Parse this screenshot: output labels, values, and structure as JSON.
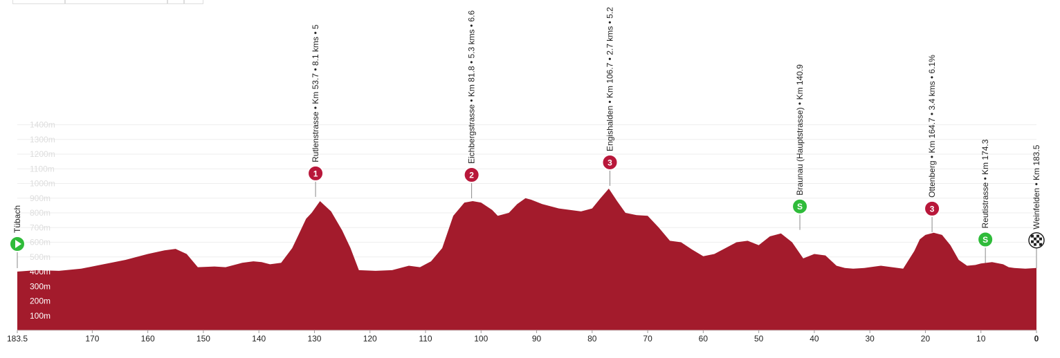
{
  "chart_data": {
    "type": "area",
    "title": "",
    "xlabel": "",
    "ylabel": "",
    "x_reversed": true,
    "xlim": [
      183.5,
      0
    ],
    "ylim": [
      0,
      1500
    ],
    "x_ticks": [
      "183.5",
      "170",
      "160",
      "150",
      "140",
      "130",
      "120",
      "110",
      "100",
      "90",
      "80",
      "70",
      "60",
      "50",
      "40",
      "30",
      "20",
      "10",
      "0"
    ],
    "y_ticks": [
      "100m",
      "200m",
      "300m",
      "400m",
      "500m",
      "600m",
      "700m",
      "800m",
      "900m",
      "1000m",
      "1100m",
      "1200m",
      "1300m",
      "1400m"
    ],
    "fill_color": "#a31b2c",
    "grid": true,
    "profile": {
      "km_remaining": [
        183.5,
        180,
        176,
        172,
        168,
        164,
        160,
        157,
        155,
        153,
        151,
        148,
        146,
        143,
        141,
        139.5,
        138,
        136,
        134,
        133,
        131.5,
        130.5,
        129,
        127,
        125,
        123.5,
        122,
        119,
        116,
        113,
        111,
        109,
        107,
        105,
        103,
        101.5,
        100,
        98,
        97,
        95,
        93.5,
        92,
        91,
        89,
        86,
        84,
        82,
        80,
        78.5,
        77,
        75.5,
        74,
        72,
        70,
        68,
        66,
        64,
        62,
        60,
        58,
        56,
        54,
        52,
        50,
        48,
        46,
        44,
        42,
        40,
        38,
        36,
        34.5,
        33,
        31,
        30,
        28,
        26,
        24,
        22,
        21,
        20,
        18.5,
        17,
        15.5,
        14,
        12.5,
        11,
        10,
        8,
        6,
        5,
        4,
        2,
        0
      ],
      "elevation_m": [
        400,
        410,
        405,
        420,
        450,
        480,
        520,
        545,
        555,
        520,
        430,
        435,
        430,
        460,
        470,
        465,
        450,
        460,
        560,
        640,
        760,
        800,
        880,
        810,
        680,
        560,
        410,
        405,
        410,
        440,
        430,
        470,
        560,
        780,
        870,
        880,
        870,
        820,
        780,
        800,
        860,
        900,
        890,
        860,
        830,
        820,
        810,
        830,
        900,
        965,
        880,
        800,
        785,
        780,
        700,
        610,
        600,
        550,
        505,
        520,
        560,
        600,
        610,
        580,
        640,
        660,
        600,
        490,
        520,
        510,
        440,
        425,
        420,
        425,
        430,
        440,
        430,
        420,
        540,
        620,
        650,
        665,
        650,
        580,
        480,
        440,
        445,
        455,
        465,
        450,
        430,
        425,
        420,
        425
      ]
    },
    "markers": [
      {
        "label": "Tübach",
        "km": 183.5,
        "elev": 400,
        "type": "start",
        "badge": ""
      },
      {
        "label": "Rutlenstrasse • Km 53.7 • 8.1 kms • 5",
        "km": 129.8,
        "elev": 890,
        "type": "climb",
        "badge": "1"
      },
      {
        "label": "Eichbergstrasse • Km 81.8 • 5.3 kms • 6.6",
        "km": 101.7,
        "elev": 880,
        "type": "climb",
        "badge": "2"
      },
      {
        "label": "Engishalden • Km 106.7 • 2.7 kms • 5.2",
        "km": 76.8,
        "elev": 965,
        "type": "climb",
        "badge": "3"
      },
      {
        "label": "Braunau (Hauptstrasse) • Km 140.9",
        "km": 42.6,
        "elev": 665,
        "type": "sprint",
        "badge": "S"
      },
      {
        "label": "Ottenberg • Km 164.7 • 3.4 kms • 6.1%",
        "km": 18.8,
        "elev": 650,
        "type": "climb",
        "badge": "3"
      },
      {
        "label": "Reutistrasse • Km 174.3",
        "km": 9.2,
        "elev": 440,
        "type": "sprint",
        "badge": "S"
      },
      {
        "label": "Weinfelden • Km 183.5",
        "km": 0,
        "elev": 425,
        "type": "finish",
        "badge": ""
      }
    ],
    "colors": {
      "climb": "#b8173a",
      "sprint": "#2fbb3a",
      "start": "#2fbb3a",
      "finish": "#222222"
    }
  }
}
